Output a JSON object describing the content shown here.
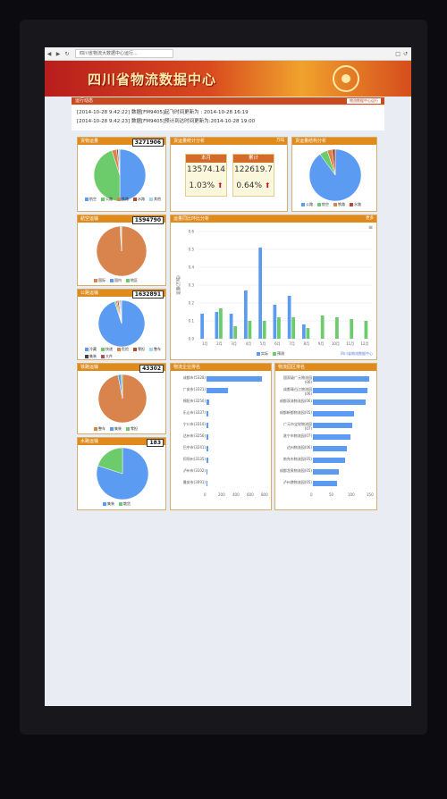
{
  "browser": {
    "back_glyph": "◀",
    "forward_glyph": "▶",
    "reload_glyph": "↻",
    "address": "四川省物流大数据中心运行...",
    "right_icons": [
      "□",
      "↺"
    ]
  },
  "header": {
    "title": "四川省物流数据中心"
  },
  "notice": {
    "title": "运行动态",
    "button": "物流数据中心运行",
    "lines": [
      "[2014-10-28 9:42:22] 数据[FM9405]起飞时间更新为 : 2014-10-28 16:19",
      "[2014-10-28 9:42:23] 数据[FM9405]预计到达时间更新为:2014-10-28 19:00"
    ]
  },
  "panels": {
    "p1": {
      "title": "货物运量",
      "count": "3271906",
      "legend": [
        "航空",
        "公路",
        "铁路",
        "水路",
        "其他"
      ]
    },
    "p2": {
      "title": "货运量统计分析",
      "extra": "万吨",
      "monthly_label": "本月",
      "monthly_value": "13574.14",
      "monthly_pct": "1.03%",
      "total_label": "累计",
      "total_value": "122619.7",
      "total_pct": "0.64%",
      "arrow": "⬆"
    },
    "p3": {
      "title": "货运量结构分析",
      "legend": [
        "公路",
        "航空",
        "铁路",
        "水路"
      ]
    },
    "p4": {
      "title": "航空运输",
      "count": "1594790",
      "legend": [
        "国际",
        "国内",
        "地区"
      ]
    },
    "p5": {
      "title": "公路运输",
      "count": "1632891",
      "legend": [
        "冷藏",
        "快递",
        "危险",
        "零担",
        "整车",
        "集装",
        "大件"
      ]
    },
    "p6": {
      "title": "铁路运输",
      "count": "43302",
      "legend": [
        "整车",
        "集装",
        "零担"
      ]
    },
    "p7": {
      "title": "水路运输",
      "count": "183",
      "legend": [
        "集装",
        "散货"
      ]
    },
    "bar": {
      "title": "运量同比环比分析",
      "extra": "更多",
      "y_title": "运量(万吨)",
      "legend": [
        "实际",
        "预测"
      ],
      "corner": "≡",
      "footnote": "四川省物流数据中心"
    },
    "rank1": {
      "title": "物流企业排名",
      "labels": [
        "成都市(5328)",
        "广安市(3321)",
        "绵阳市(3250)",
        "乐山市(3337)",
        "宁川市(3310)",
        "达州市(3256)",
        "巴中市(3241)",
        "阿坝州(3135)",
        "泸州市(3102)",
        "雅安市(3091)"
      ],
      "ticks": [
        "0",
        "200",
        "400",
        "600",
        "800"
      ]
    },
    "rank2": {
      "title": "物流园区排名",
      "labels": [
        "国家级广元物流园(06)",
        "成都青白江物流园(06)",
        "成都双流物流园(06)",
        "成都新都物流园(05)",
        "广元市宝轮物流园(07)",
        "遂宁市物流园(07)",
        "达州物流园(06)",
        "南充市物流园(05)",
        "成都龙泉物流园(05)",
        "泸州港物流园(05)"
      ],
      "ticks": [
        "0",
        "50",
        "100",
        "150"
      ]
    }
  },
  "chart_data": [
    {
      "type": "bar",
      "title": "运量同比环比分析",
      "ylabel": "运量(万吨)",
      "categories": [
        "1月",
        "2月",
        "3月",
        "4月",
        "5月",
        "6月",
        "7月",
        "8月",
        "9月",
        "10月",
        "11月",
        "12月"
      ],
      "ylim": [
        0,
        0.6
      ],
      "series": [
        {
          "name": "实际",
          "values": [
            0.14,
            0.15,
            0.14,
            0.27,
            0.51,
            0.19,
            0.24,
            0.08,
            0,
            0,
            0,
            0
          ]
        },
        {
          "name": "预测",
          "values": [
            0,
            0.17,
            0.07,
            0.1,
            0.1,
            0.12,
            0.12,
            0.06,
            0.13,
            0.12,
            0.11,
            0.1
          ]
        }
      ]
    },
    {
      "type": "bar",
      "title": "物流企业排名",
      "categories": [
        "成都市(5328)",
        "广安市(3321)",
        "绵阳市(3250)",
        "乐山市(3337)",
        "宁川市(3310)",
        "达州市(3256)",
        "巴中市(3241)",
        "阿坝州(3135)",
        "泸州市(3102)",
        "雅安市(3091)"
      ],
      "values": [
        780,
        300,
        40,
        30,
        28,
        25,
        22,
        20,
        18,
        15
      ],
      "xlim": [
        0,
        800
      ]
    },
    {
      "type": "bar",
      "title": "物流园区排名",
      "categories": [
        "国家级广元物流园(06)",
        "成都青白江物流园(06)",
        "成都双流物流园(06)",
        "成都新都物流园(05)",
        "广元市宝轮物流园(07)",
        "遂宁市物流园(07)",
        "达州物流园(06)",
        "南充市物流园(05)",
        "成都龙泉物流园(05)",
        "泸州港物流园(05)"
      ],
      "values": [
        150,
        145,
        140,
        110,
        105,
        100,
        90,
        85,
        70,
        65
      ],
      "xlim": [
        0,
        150
      ]
    },
    {
      "type": "pie",
      "title": "货物运量",
      "categories": [
        "航空",
        "公路",
        "铁路",
        "水路",
        "其他"
      ],
      "values": [
        50,
        45,
        3,
        1,
        1
      ],
      "colors": [
        "#5b9cf2",
        "#6ccb6b",
        "#d9844c",
        "#b9482f",
        "#9fd8f0"
      ]
    },
    {
      "type": "pie",
      "title": "货运量结构分析",
      "categories": [
        "公路",
        "航空",
        "铁路",
        "水路"
      ],
      "values": [
        90,
        5,
        3,
        2
      ],
      "colors": [
        "#5b9cf2",
        "#6ccb6b",
        "#d9844c",
        "#b9482f"
      ]
    },
    {
      "type": "pie",
      "title": "航空运输",
      "categories": [
        "国际",
        "国内",
        "地区"
      ],
      "values": [
        99,
        0.5,
        0.5
      ],
      "colors": [
        "#d9844c",
        "#5b9cf2",
        "#6ccb6b"
      ]
    },
    {
      "type": "pie",
      "title": "公路运输",
      "categories": [
        "冷藏",
        "快递",
        "危险",
        "零担",
        "整车",
        "集装",
        "大件"
      ],
      "values": [
        95,
        1,
        1,
        1,
        1,
        0.5,
        0.5
      ],
      "colors": [
        "#5b9cf2",
        "#6ccb6b",
        "#d9844c",
        "#b9482f",
        "#9fd8f0",
        "#444",
        "#a55"
      ]
    },
    {
      "type": "pie",
      "title": "铁路运输",
      "categories": [
        "整车",
        "集装",
        "零担"
      ],
      "values": [
        97,
        2,
        1
      ],
      "colors": [
        "#d9844c",
        "#5b9cf2",
        "#6ccb6b"
      ]
    },
    {
      "type": "pie",
      "title": "水路运输",
      "categories": [
        "集装",
        "散货"
      ],
      "values": [
        80,
        20
      ],
      "colors": [
        "#5b9cf2",
        "#6ccb6b"
      ]
    }
  ]
}
